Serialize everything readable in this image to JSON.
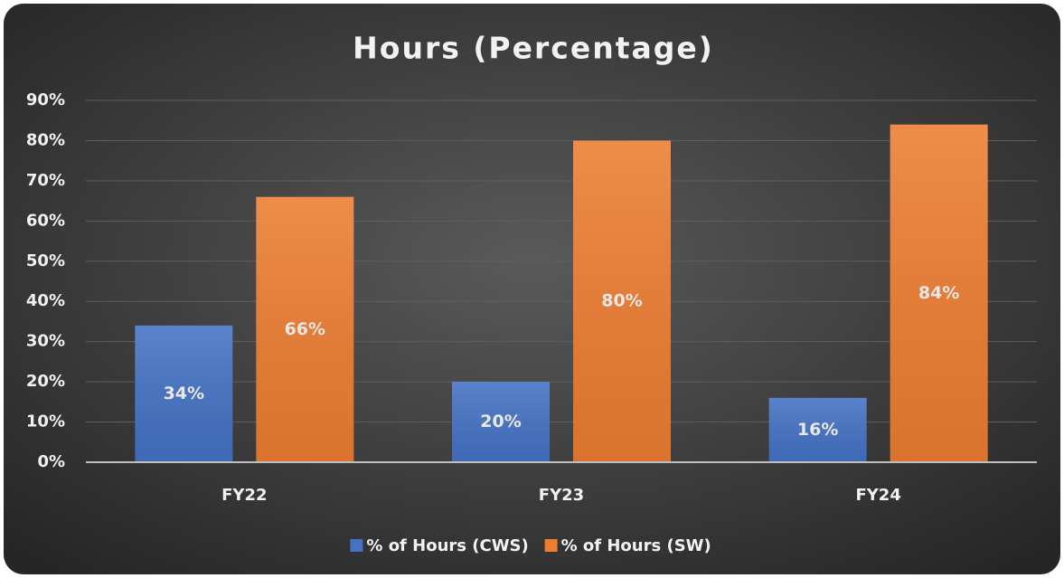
{
  "chart_data": {
    "type": "bar",
    "title": "Hours (Percentage)",
    "categories": [
      "FY22",
      "FY23",
      "FY24"
    ],
    "series": [
      {
        "name": "% of Hours (CWS)",
        "color": "#4472c4",
        "values": [
          34,
          20,
          16
        ],
        "value_labels": [
          "34%",
          "20%",
          "16%"
        ]
      },
      {
        "name": "% of Hours (SW)",
        "color": "#ed7d31",
        "values": [
          66,
          80,
          84
        ],
        "value_labels": [
          "66%",
          "80%",
          "84%"
        ]
      }
    ],
    "ylim": [
      0,
      90
    ],
    "yticks": [
      {
        "value": 0,
        "label": "0%"
      },
      {
        "value": 10,
        "label": "10%"
      },
      {
        "value": 20,
        "label": "20%"
      },
      {
        "value": 30,
        "label": "30%"
      },
      {
        "value": 40,
        "label": "40%"
      },
      {
        "value": 50,
        "label": "50%"
      },
      {
        "value": 60,
        "label": "60%"
      },
      {
        "value": 70,
        "label": "70%"
      },
      {
        "value": 80,
        "label": "80%"
      },
      {
        "value": 90,
        "label": "90%"
      }
    ],
    "grid": true,
    "legend": "bottom"
  }
}
